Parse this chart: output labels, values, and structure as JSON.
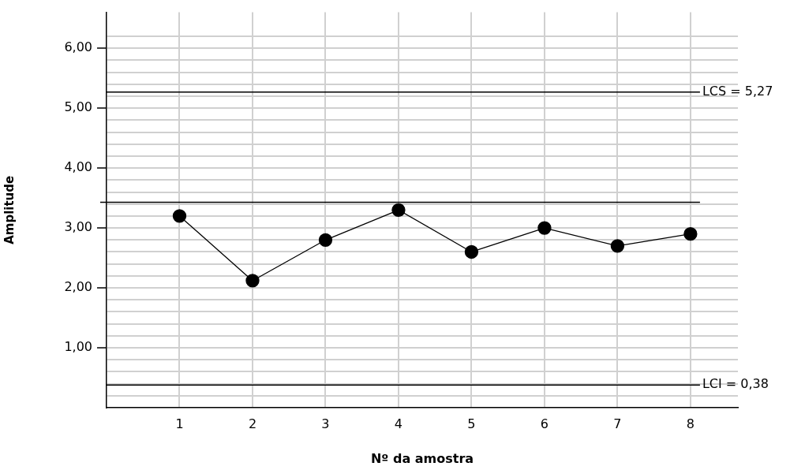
{
  "chart_data": {
    "type": "line",
    "xlabel": "Nº da amostra",
    "ylabel": "Amplitude",
    "categories": [
      "1",
      "2",
      "3",
      "4",
      "5",
      "6",
      "7",
      "8"
    ],
    "series": [
      {
        "color": "#000000",
        "values": [
          3.2,
          2.12,
          2.8,
          3.3,
          2.6,
          3.0,
          2.7,
          2.9
        ]
      }
    ],
    "ylim": [
      0,
      6.6
    ],
    "yticks": [
      {
        "value": 0.2,
        "label": null
      },
      {
        "value": 0.4,
        "label": null
      },
      {
        "value": 0.6,
        "label": null
      },
      {
        "value": 0.8,
        "label": null
      },
      {
        "value": 1,
        "label": "1,00"
      },
      {
        "value": 1.2,
        "label": null
      },
      {
        "value": 1.4,
        "label": null
      },
      {
        "value": 1.6,
        "label": null
      },
      {
        "value": 1.8,
        "label": null
      },
      {
        "value": 2,
        "label": "2,00"
      },
      {
        "value": 2.2,
        "label": null
      },
      {
        "value": 2.4,
        "label": null
      },
      {
        "value": 2.6,
        "label": null
      },
      {
        "value": 2.8,
        "label": null
      },
      {
        "value": 3,
        "label": "3,00"
      },
      {
        "value": 3.2,
        "label": null
      },
      {
        "value": 3.4,
        "label": null
      },
      {
        "value": 3.6,
        "label": null
      },
      {
        "value": 3.8,
        "label": null
      },
      {
        "value": 4,
        "label": "4,00"
      },
      {
        "value": 4.2,
        "label": null
      },
      {
        "value": 4.4,
        "label": null
      },
      {
        "value": 4.6,
        "label": null
      },
      {
        "value": 4.8,
        "label": null
      },
      {
        "value": 5,
        "label": "5,00"
      },
      {
        "value": 5.2,
        "label": null
      },
      {
        "value": 5.4,
        "label": null
      },
      {
        "value": 5.6,
        "label": null
      },
      {
        "value": 5.8,
        "label": null
      },
      {
        "value": 6,
        "label": "6,00"
      },
      {
        "value": 6.2,
        "label": null
      }
    ],
    "ref_lines": [
      {
        "axis": "y",
        "value": 5.27,
        "label": "LCS = 5,27",
        "color": "#000000"
      },
      {
        "axis": "y",
        "value": 3.43,
        "color": "#000000"
      },
      {
        "axis": "y",
        "value": 0.38,
        "label": "LCI = 0,38",
        "color": "#000000"
      }
    ],
    "grid": true,
    "legend": false,
    "marker": "circle",
    "line_style": "solid"
  }
}
